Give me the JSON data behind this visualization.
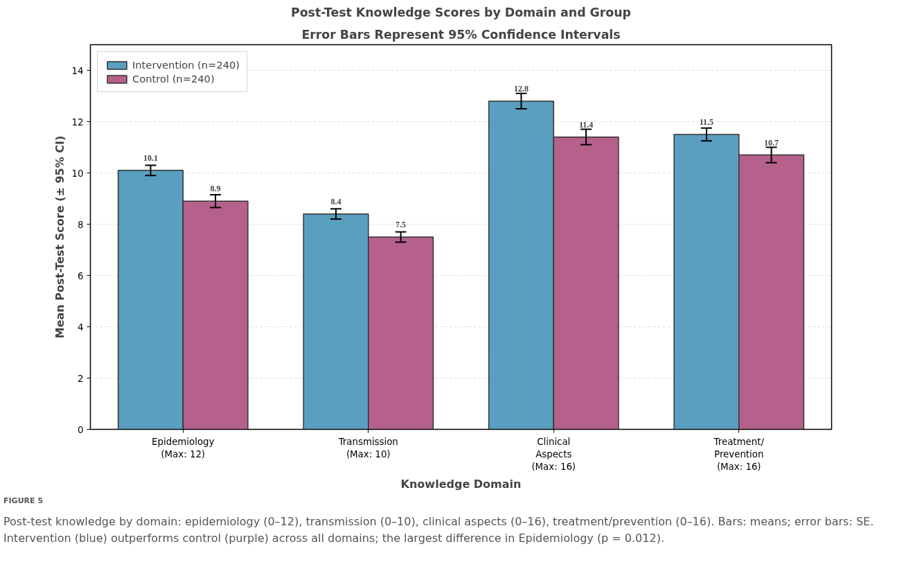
{
  "chart_data": {
    "type": "bar",
    "title": "Post-Test Knowledge Scores by Domain and Group",
    "subtitle": "Error Bars Represent 95% Confidence Intervals",
    "xlabel": "Knowledge Domain",
    "ylabel": "Mean Post-Test Score (± 95% CI)",
    "categories": [
      "Epidemiology\n(Max: 12)",
      "Transmission\n(Max: 10)",
      "Clinical\nAspects\n(Max: 16)",
      "Treatment/\nPrevention\n(Max: 16)"
    ],
    "series": [
      {
        "name": "Intervention (n=240)",
        "color": "#5a9fbf",
        "values": [
          10.1,
          8.4,
          12.8,
          11.5
        ],
        "errors": [
          0.2,
          0.2,
          0.3,
          0.25
        ]
      },
      {
        "name": "Control (n=240)",
        "color": "#b5618b",
        "values": [
          8.9,
          7.5,
          11.4,
          10.7
        ],
        "errors": [
          0.25,
          0.2,
          0.3,
          0.3
        ]
      }
    ],
    "ylim": [
      0,
      15
    ],
    "yticks": [
      0,
      2,
      4,
      6,
      8,
      10,
      12,
      14
    ],
    "grid": "y",
    "legend": "top left",
    "data_labels": true,
    "annotations": [
      "FIGURE 5",
      "Post-test knowledge by domain: epidemiology (0–12), transmission (0–10), clinical aspects (0–16), treatment/prevention (0–16). Bars: means; error bars: SE. Intervention (blue) outperforms control (purple) across all domains; the largest difference in Epidemiology (p = 0.012)."
    ]
  }
}
